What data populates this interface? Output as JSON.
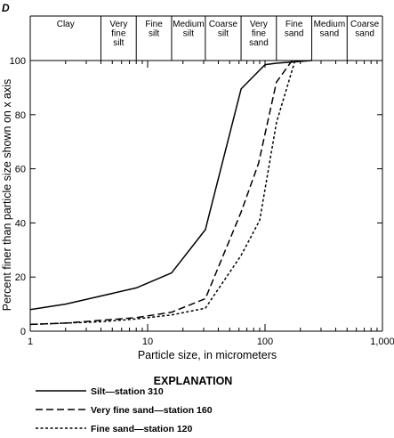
{
  "chart_data": {
    "type": "line",
    "panel_label": "D",
    "xlabel": "Particle size, in micrometers",
    "ylabel": "Percent finer than particle size shown on x axis",
    "xscale": "log",
    "xlim": [
      1,
      1000
    ],
    "ylim": [
      0,
      100
    ],
    "x_ticks": [
      1,
      10,
      100,
      1000
    ],
    "x_tick_labels": [
      "1",
      "10",
      "100",
      "1,000"
    ],
    "y_ticks": [
      0,
      20,
      40,
      60,
      80,
      100
    ],
    "y_tick_labels": [
      "0",
      "20",
      "40",
      "60",
      "80",
      "100"
    ],
    "size_classes": [
      {
        "lines": [
          "Clay"
        ],
        "from": 1,
        "to": 4
      },
      {
        "lines": [
          "Very",
          "fine",
          "silt"
        ],
        "from": 4,
        "to": 8
      },
      {
        "lines": [
          "Fine",
          "silt"
        ],
        "from": 8,
        "to": 16
      },
      {
        "lines": [
          "Medium",
          "silt"
        ],
        "from": 16,
        "to": 31
      },
      {
        "lines": [
          "Coarse",
          "silt"
        ],
        "from": 31,
        "to": 62.5
      },
      {
        "lines": [
          "Very",
          "fine",
          "sand"
        ],
        "from": 62.5,
        "to": 125
      },
      {
        "lines": [
          "Fine",
          "sand"
        ],
        "from": 125,
        "to": 250
      },
      {
        "lines": [
          "Medium",
          "sand"
        ],
        "from": 250,
        "to": 500
      },
      {
        "lines": [
          "Coarse",
          "sand"
        ],
        "from": 500,
        "to": 1000
      }
    ],
    "legend_title": "EXPLANATION",
    "legend_position": "below",
    "series": [
      {
        "name": "Silt—station 310",
        "style": "solid",
        "x": [
          1,
          2,
          4,
          8,
          16,
          31,
          62.5,
          100,
          125,
          250
        ],
        "y": [
          8,
          10,
          13,
          16,
          21.5,
          37.5,
          89.5,
          98.5,
          99,
          100
        ]
      },
      {
        "name": "Very fine sand—station 160",
        "style": "dashed",
        "x": [
          1,
          2,
          4,
          8,
          16,
          31,
          62.5,
          88,
          125,
          170
        ],
        "y": [
          2.5,
          3,
          4,
          5,
          7,
          12,
          44,
          62,
          92,
          100
        ]
      },
      {
        "name": "Fine sand—station 120",
        "style": "dotted",
        "x": [
          1,
          2,
          4,
          8,
          16,
          31,
          62.5,
          90,
          125,
          180
        ],
        "y": [
          2.5,
          3,
          3.5,
          4.5,
          6,
          8.5,
          28,
          41,
          77,
          100
        ]
      }
    ]
  }
}
